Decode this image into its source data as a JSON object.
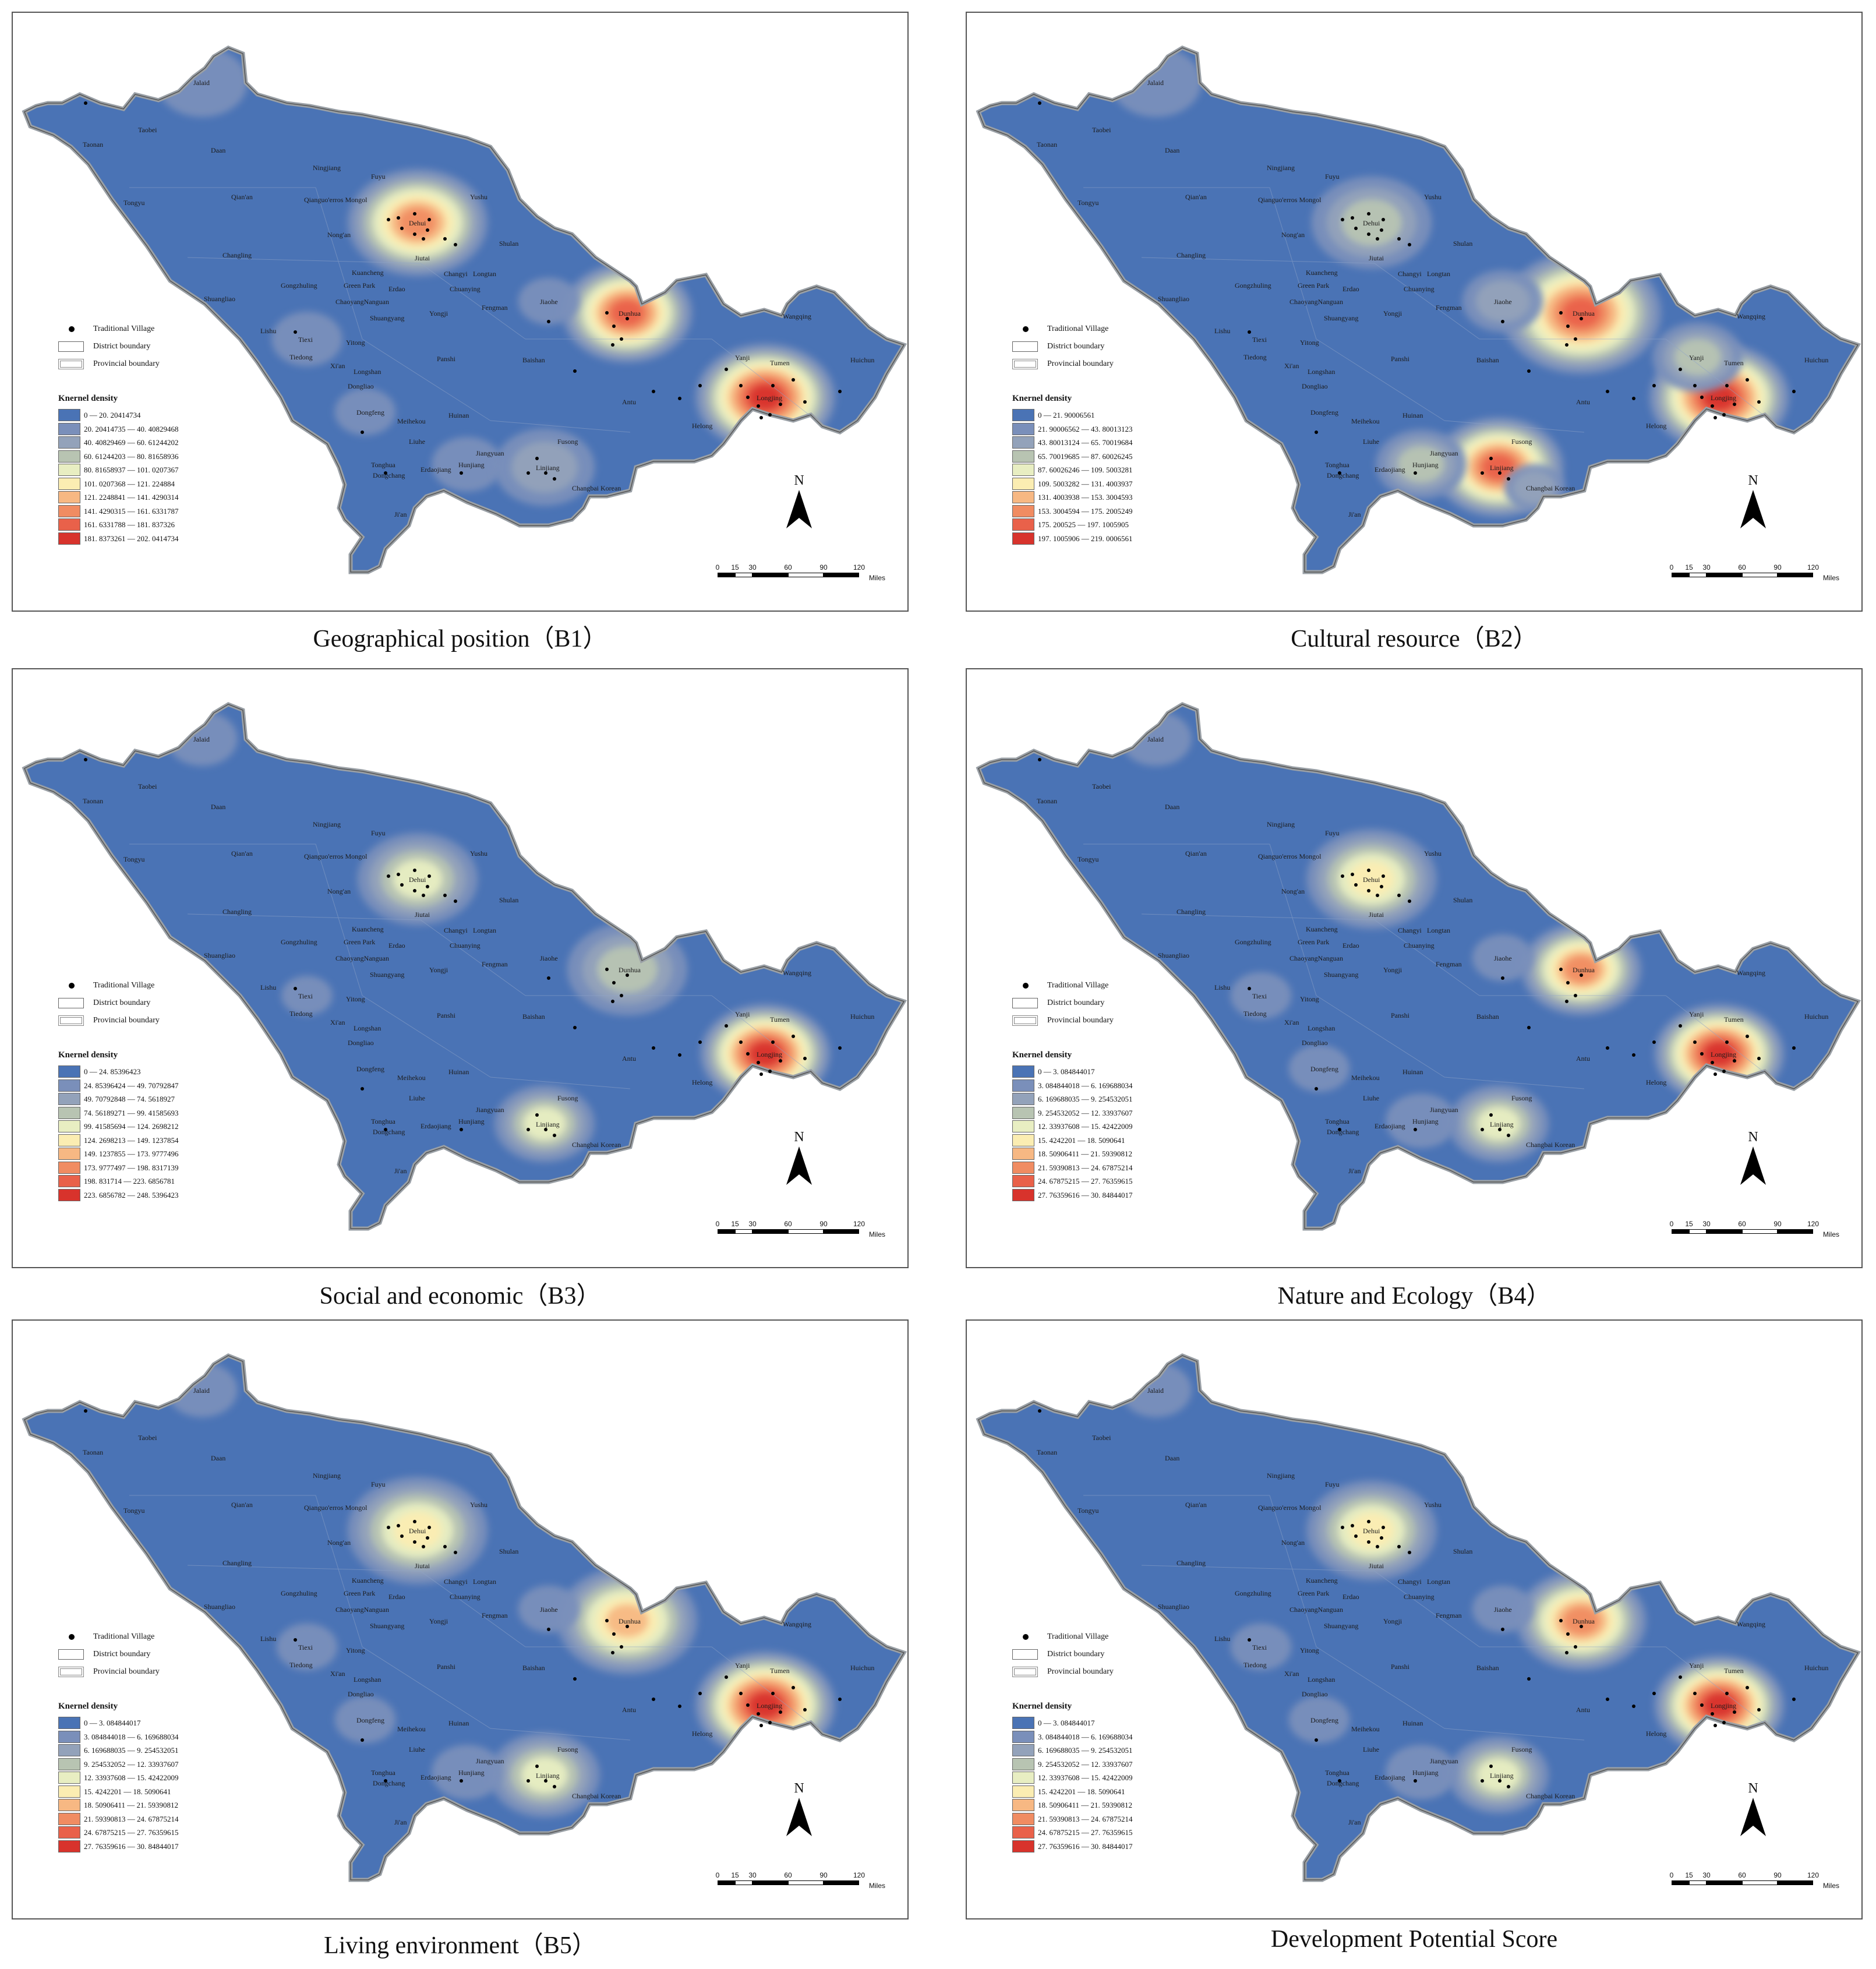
{
  "map_labels": [
    "Jalaid",
    "Taobei",
    "Taonan",
    "Daan",
    "Ningjiang",
    "Fuyu",
    "Tongyu",
    "Qian'an",
    "Qianguo'erros Mongol",
    "Yushu",
    "Dehui",
    "Nong'an",
    "Shulan",
    "Changling",
    "Jiutai",
    "Kuancheng",
    "Changyi",
    "Longtan",
    "Gongzhuling",
    "Green Park",
    "Erdao",
    "Chuanying",
    "Shuangliao",
    "ChaoyangNanguan",
    "Jiaohe",
    "Yongji",
    "Fengman",
    "Lishu",
    "Shuangyang",
    "Wangqing",
    "Dunhua",
    "Tiexi",
    "Yitong",
    "Tiedong",
    "Xi'an",
    "Longshan",
    "Panshi",
    "Baishan",
    "Dongliao",
    "Yanji",
    "Tumen",
    "Huichun",
    "Antu",
    "Dongfeng",
    "Meihekou",
    "Huinan",
    "Longjing",
    "Helong",
    "Liuhe",
    "Fusong",
    "Jiangyuan",
    "Tonghua",
    "Dongchang",
    "Erdaojiang",
    "Hunjiang",
    "Linjiang",
    "Changbai Korean",
    "Ji'an"
  ],
  "legend": {
    "point_label": "Traditional Village",
    "district_label": "District boundary",
    "province_label": "Provincial boundary",
    "density_title": "Knernel density"
  },
  "colors": {
    "base": "#4a73b5",
    "ramp": [
      "#4a73b5",
      "#7a8fba",
      "#93a2ba",
      "#b8c4b2",
      "#e8eec2",
      "#fbedb2",
      "#f7b883",
      "#f08c62",
      "#e9614a",
      "#d8332c"
    ]
  },
  "scale_bar": {
    "ticks": [
      "0",
      "15",
      "30",
      "60",
      "90",
      "120"
    ],
    "unit": "Miles"
  },
  "north_label": "N",
  "panels": [
    {
      "caption": "Geographical position（B1）",
      "classes": [
        "0 — 20. 20414734",
        "20. 20414735 — 40. 40829468",
        "40. 40829469 — 60. 61244202",
        "60. 61244203 — 80. 81658936",
        "80. 81658937 — 101. 0207367",
        "101. 0207368 — 121. 224884",
        "121. 2248841 — 141. 4290314",
        "141. 4290315 — 161. 6331787",
        "161. 6331788 — 181. 837326",
        "181. 8373261 — 202. 0414734"
      ],
      "hotspots": [
        {
          "name": "Jalaid",
          "level": 1,
          "spread": 0.8
        },
        {
          "name": "Dehui",
          "level": 7,
          "spread": 1.3
        },
        {
          "name": "Dunhua",
          "level": 8,
          "spread": 1.2
        },
        {
          "name": "Longjing",
          "level": 9,
          "spread": 1.3
        },
        {
          "name": "Tiexi",
          "level": 1,
          "spread": 0.6
        },
        {
          "name": "Jiaohe",
          "level": 1,
          "spread": 0.5
        },
        {
          "name": "Dongfeng",
          "level": 1,
          "spread": 0.5
        },
        {
          "name": "Hunjiang",
          "level": 1,
          "spread": 0.6
        },
        {
          "name": "Linjiang",
          "level": 2,
          "spread": 0.9
        }
      ]
    },
    {
      "caption": "Cultural resource（B2）",
      "classes": [
        "0 — 21. 90006561",
        "21. 90006562 — 43. 80013123",
        "43. 80013124 — 65. 70019684",
        "65. 70019685 — 87. 60026245",
        "87. 60026246 — 109. 5003281",
        "109. 5003282 — 131. 4003937",
        "131. 4003938 — 153. 3004593",
        "153. 3004594 — 175. 2005249",
        "175. 200525 — 197. 1005905",
        "197. 1005906 — 219. 0006561"
      ],
      "hotspots": [
        {
          "name": "Jalaid",
          "level": 1,
          "spread": 0.8
        },
        {
          "name": "Dehui",
          "level": 3,
          "spread": 1.1
        },
        {
          "name": "Dunhua",
          "level": 8,
          "spread": 1.5
        },
        {
          "name": "Longjing",
          "level": 9,
          "spread": 1.3
        },
        {
          "name": "Jiaohe",
          "level": 2,
          "spread": 0.7
        },
        {
          "name": "Yanji",
          "level": 3,
          "spread": 0.8
        },
        {
          "name": "Linjiang",
          "level": 8,
          "spread": 1.2
        },
        {
          "name": "Hunjiang",
          "level": 3,
          "spread": 0.8
        },
        {
          "name": "Changbai Korean",
          "level": 2,
          "spread": 0.5
        }
      ]
    },
    {
      "caption": "Social and economic（B3）",
      "classes": [
        "0 — 24. 85396423",
        "24. 85396424 — 49. 70792847",
        "49. 70792848 — 74. 5618927",
        "74. 56189271 — 99. 41585693",
        "99. 41585694 — 124. 2698212",
        "124. 2698213 — 149. 1237854",
        "149. 1237855 — 173. 9777496",
        "173. 9777497 — 198. 8317139",
        "198. 831714 — 223. 6856781",
        "223. 6856782 — 248. 5396423"
      ],
      "hotspots": [
        {
          "name": "Jalaid",
          "level": 1,
          "spread": 0.6
        },
        {
          "name": "Dehui",
          "level": 4,
          "spread": 1.1
        },
        {
          "name": "Dunhua",
          "level": 3,
          "spread": 1.1
        },
        {
          "name": "Longjing",
          "level": 9,
          "spread": 1.2
        },
        {
          "name": "Tiexi",
          "level": 1,
          "spread": 0.4
        },
        {
          "name": "Linjiang",
          "level": 4,
          "spread": 0.9
        }
      ]
    },
    {
      "caption": "Nature and Ecology（B4）",
      "classes": [
        "0 — 3. 084844017",
        "3. 084844018 — 6. 169688034",
        "6. 169688035 — 9. 254532051",
        "9. 254532052 — 12. 33937607",
        "12. 33937608 — 15. 42422009",
        "15. 4242201 — 18. 5090641",
        "18. 50906411 — 21. 59390812",
        "21. 59390813 — 24. 67875214",
        "24. 67875215 — 27. 76359615",
        "27. 76359616 — 30. 84844017"
      ],
      "hotspots": [
        {
          "name": "Jalaid",
          "level": 1,
          "spread": 0.6
        },
        {
          "name": "Dehui",
          "level": 5,
          "spread": 1.2
        },
        {
          "name": "Dunhua",
          "level": 7,
          "spread": 1.1
        },
        {
          "name": "Longjing",
          "level": 9,
          "spread": 1.2
        },
        {
          "name": "Tiexi",
          "level": 1,
          "spread": 0.5
        },
        {
          "name": "Jiaohe",
          "level": 1,
          "spread": 0.5
        },
        {
          "name": "Dongfeng",
          "level": 1,
          "spread": 0.5
        },
        {
          "name": "Linjiang",
          "level": 4,
          "spread": 0.9
        },
        {
          "name": "Hunjiang",
          "level": 1,
          "spread": 0.6
        }
      ]
    },
    {
      "caption": "Living environment（B5）",
      "classes": [
        "0 — 3. 084844017",
        "3. 084844018 — 6. 169688034",
        "6. 169688035 — 9. 254532051",
        "9. 254532052 — 12. 33937607",
        "12. 33937608 — 15. 42422009",
        "15. 4242201 — 18. 5090641",
        "18. 50906411 — 21. 59390812",
        "21. 59390813 — 24. 67875214",
        "24. 67875215 — 27. 76359615",
        "27. 76359616 — 30. 84844017"
      ],
      "hotspots": [
        {
          "name": "Jalaid",
          "level": 1,
          "spread": 0.6
        },
        {
          "name": "Dehui",
          "level": 5,
          "spread": 1.3
        },
        {
          "name": "Dunhua",
          "level": 6,
          "spread": 1.3
        },
        {
          "name": "Longjing",
          "level": 9,
          "spread": 1.3
        },
        {
          "name": "Tiexi",
          "level": 1,
          "spread": 0.5
        },
        {
          "name": "Jiaohe",
          "level": 1,
          "spread": 0.5
        },
        {
          "name": "Dongfeng",
          "level": 1,
          "spread": 0.5
        },
        {
          "name": "Linjiang",
          "level": 4,
          "spread": 1.0
        },
        {
          "name": "Hunjiang",
          "level": 1,
          "spread": 0.6
        }
      ]
    },
    {
      "caption": "Development Potential Score",
      "classes": [
        "0 — 3. 084844017",
        "3. 084844018 — 6. 169688034",
        "6. 169688035 — 9. 254532051",
        "9. 254532052 — 12. 33937607",
        "12. 33937608 — 15. 42422009",
        "15. 4242201 — 18. 5090641",
        "18. 50906411 — 21. 59390812",
        "21. 59390813 — 24. 67875214",
        "24. 67875215 — 27. 76359615",
        "27. 76359616 — 30. 84844017"
      ],
      "hotspots": [
        {
          "name": "Jalaid",
          "level": 1,
          "spread": 0.6
        },
        {
          "name": "Dehui",
          "level": 5,
          "spread": 1.2
        },
        {
          "name": "Dunhua",
          "level": 7,
          "spread": 1.2
        },
        {
          "name": "Longjing",
          "level": 9,
          "spread": 1.2
        },
        {
          "name": "Tiexi",
          "level": 1,
          "spread": 0.5
        },
        {
          "name": "Jiaohe",
          "level": 1,
          "spread": 0.5
        },
        {
          "name": "Dongfeng",
          "level": 1,
          "spread": 0.5
        },
        {
          "name": "Linjiang",
          "level": 4,
          "spread": 0.9
        },
        {
          "name": "Hunjiang",
          "level": 1,
          "spread": 0.6
        }
      ]
    }
  ]
}
